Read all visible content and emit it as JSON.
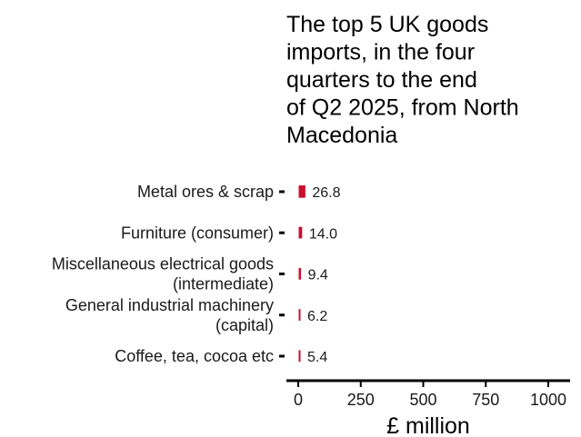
{
  "chart_data": {
    "type": "bar",
    "orientation": "horizontal",
    "title_lines": [
      "The top 5 UK goods",
      "imports, in the four",
      "quarters to the end",
      "of Q2 2025, from North",
      "Macedonia"
    ],
    "categories": [
      [
        "Metal ores & scrap"
      ],
      [
        "Furniture (consumer)"
      ],
      [
        "Miscellaneous electrical goods",
        "(intermediate)"
      ],
      [
        "General industrial machinery",
        "(capital)"
      ],
      [
        "Coffee, tea, cocoa etc"
      ]
    ],
    "values": [
      26.8,
      14.0,
      9.4,
      6.2,
      5.4
    ],
    "value_labels": [
      "26.8",
      "14.0",
      "9.4",
      "6.2",
      "5.4"
    ],
    "xlabel": "£ million",
    "xlim": [
      0,
      1000
    ],
    "xticks": [
      0,
      250,
      500,
      750,
      1000
    ],
    "grid": false,
    "bar_color": "#c8102e"
  }
}
